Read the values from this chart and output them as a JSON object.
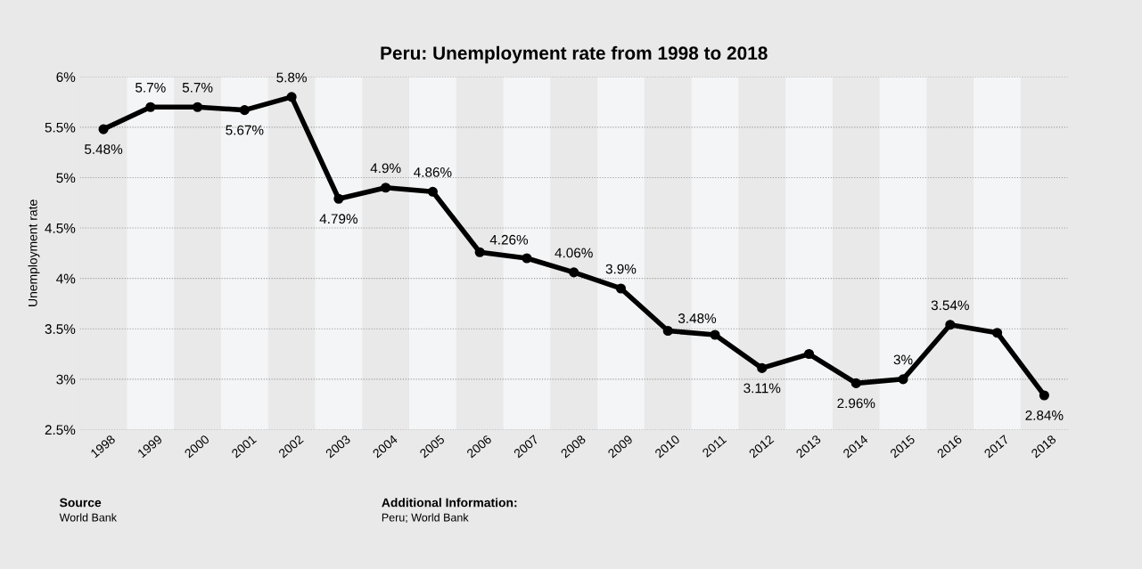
{
  "chart_data": {
    "type": "line",
    "title": "Peru: Unemployment rate from 1998 to 2018",
    "ylabel": "Unemployment rate",
    "categories": [
      "1998",
      "1999",
      "2000",
      "2001",
      "2002",
      "2003",
      "2004",
      "2005",
      "2006",
      "2007",
      "2008",
      "2009",
      "2010",
      "2011",
      "2012",
      "2013",
      "2014",
      "2015",
      "2016",
      "2017",
      "2018"
    ],
    "values": [
      5.48,
      5.7,
      5.7,
      5.67,
      5.8,
      4.79,
      4.9,
      4.86,
      4.26,
      4.2,
      4.06,
      3.9,
      3.48,
      3.44,
      3.11,
      3.25,
      2.96,
      3,
      3.54,
      3.46,
      2.84
    ],
    "value_labels": [
      "5.48%",
      "5.7%",
      "5.7%",
      "5.67%",
      "5.8%",
      "4.79%",
      "4.9%",
      "4.86%",
      "4.26%",
      null,
      "4.06%",
      "3.9%",
      "3.48%",
      null,
      "3.11%",
      null,
      "2.96%",
      "3%",
      "3.54%",
      null,
      "2.84%"
    ],
    "color": "#000000",
    "marker": "circle",
    "line_style": "solid",
    "ylim": [
      2.5,
      6
    ],
    "yticks": [
      {
        "value": 2.5,
        "label": "2.5%"
      },
      {
        "value": 3,
        "label": "3%"
      },
      {
        "value": 3.5,
        "label": "3.5%"
      },
      {
        "value": 4,
        "label": "4%"
      },
      {
        "value": 4.5,
        "label": "4.5%"
      },
      {
        "value": 5,
        "label": "5%"
      },
      {
        "value": 5.5,
        "label": "5.5%"
      },
      {
        "value": 6,
        "label": "6%"
      }
    ],
    "grid": "y",
    "annotations": [
      "Source\nWorld Bank",
      "Additional Information:\nPeru; World Bank"
    ]
  }
}
